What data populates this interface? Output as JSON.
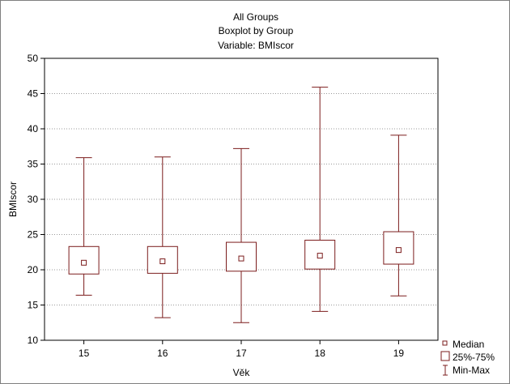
{
  "chart_data": {
    "type": "boxplot",
    "title": [
      "All Groups",
      "Boxplot by Group",
      "Variable: BMIscor"
    ],
    "xlabel": "Věk",
    "ylabel": "BMIscor",
    "ylim": [
      10,
      50
    ],
    "yticks": [
      "10",
      "15",
      "20",
      "25",
      "30",
      "35",
      "40",
      "45",
      "50"
    ],
    "categories": [
      "15",
      "16",
      "17",
      "18",
      "19"
    ],
    "groups": [
      {
        "category": "15",
        "min": 16.4,
        "q1": 19.4,
        "median": 21.0,
        "q3": 23.3,
        "max": 35.9
      },
      {
        "category": "16",
        "min": 13.2,
        "q1": 19.5,
        "median": 21.2,
        "q3": 23.3,
        "max": 36.0
      },
      {
        "category": "17",
        "min": 12.5,
        "q1": 19.8,
        "median": 21.6,
        "q3": 23.9,
        "max": 37.2
      },
      {
        "category": "18",
        "min": 14.1,
        "q1": 20.1,
        "median": 22.0,
        "q3": 24.2,
        "max": 45.9
      },
      {
        "category": "19",
        "min": 16.3,
        "q1": 20.8,
        "median": 22.8,
        "q3": 25.4,
        "max": 39.1
      }
    ],
    "legend": {
      "position": "bottom-right",
      "items": [
        "Median",
        "25%-75%",
        "Min-Max"
      ]
    },
    "grid": "horizontal-dotted",
    "color": "#7b1c1c"
  }
}
